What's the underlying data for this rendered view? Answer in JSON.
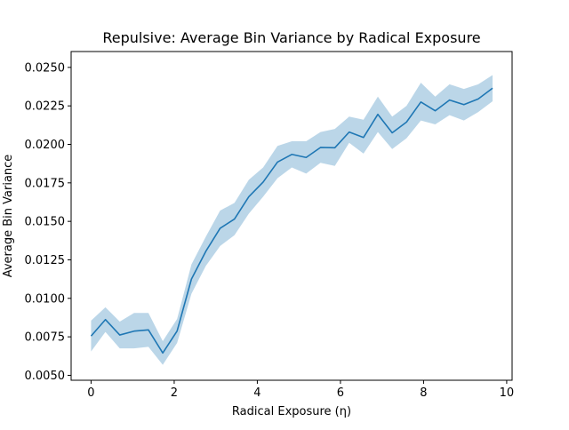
{
  "chart_data": {
    "type": "line",
    "title": "Repulsive: Average Bin Variance by Radical Exposure",
    "xlabel": "Radical Exposure (η)",
    "ylabel": "Average Bin Variance",
    "xlim": [
      -0.48,
      10.13
    ],
    "ylim": [
      0.00468,
      0.02603
    ],
    "xticks": [
      0,
      2,
      4,
      6,
      8,
      10
    ],
    "xtick_labels": [
      "0",
      "2",
      "4",
      "6",
      "8",
      "10"
    ],
    "yticks": [
      0.005,
      0.0075,
      0.01,
      0.0125,
      0.015,
      0.0175,
      0.02,
      0.0225,
      0.025
    ],
    "ytick_labels": [
      "0.0050",
      "0.0075",
      "0.0100",
      "0.0125",
      "0.0150",
      "0.0175",
      "0.0200",
      "0.0225",
      "0.0250"
    ],
    "grid": false,
    "legend": "none",
    "colors": {
      "line": "#1f77b4",
      "band": "#1f77b4",
      "band_opacity": 0.3
    },
    "series": [
      {
        "x": [
          0,
          0.345,
          0.69,
          1.035,
          1.38,
          1.725,
          2.07,
          2.415,
          2.76,
          3.105,
          3.45,
          3.795,
          4.14,
          4.485,
          4.83,
          5.175,
          5.52,
          5.865,
          6.21,
          6.555,
          6.9,
          7.245,
          7.59,
          7.935,
          8.28,
          8.625,
          8.97,
          9.315,
          9.66
        ],
        "values": [
          0.00755,
          0.00862,
          0.00762,
          0.00787,
          0.00795,
          0.00645,
          0.00788,
          0.01125,
          0.01305,
          0.01455,
          0.01515,
          0.0166,
          0.01755,
          0.01885,
          0.01935,
          0.01915,
          0.0198,
          0.01978,
          0.0208,
          0.02045,
          0.02195,
          0.02075,
          0.02145,
          0.02275,
          0.02218,
          0.02288,
          0.02258,
          0.02295,
          0.02365
        ],
        "lower": [
          0.00655,
          0.00782,
          0.00675,
          0.00675,
          0.00685,
          0.00568,
          0.0071,
          0.0103,
          0.0121,
          0.0134,
          0.0141,
          0.0155,
          0.0166,
          0.0178,
          0.0185,
          0.0181,
          0.0188,
          0.0186,
          0.0201,
          0.0194,
          0.0208,
          0.0197,
          0.0204,
          0.02155,
          0.0213,
          0.0219,
          0.02155,
          0.0221,
          0.0228
        ],
        "upper": [
          0.00855,
          0.00942,
          0.00849,
          0.00905,
          0.00905,
          0.00722,
          0.00866,
          0.0122,
          0.014,
          0.0157,
          0.0162,
          0.0177,
          0.0185,
          0.0199,
          0.0202,
          0.0202,
          0.0208,
          0.021,
          0.0218,
          0.0216,
          0.0231,
          0.0218,
          0.0225,
          0.024,
          0.0231,
          0.0239,
          0.0236,
          0.0239,
          0.0245
        ]
      }
    ]
  }
}
